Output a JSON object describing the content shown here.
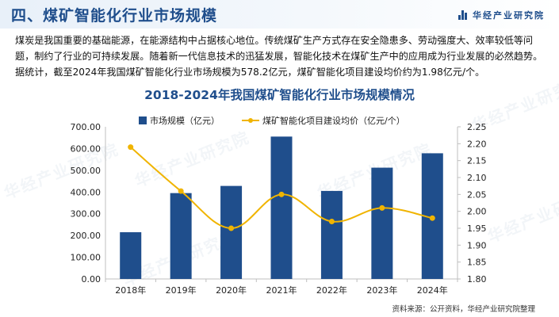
{
  "header": {
    "section_title": "四、煤矿智能化行业市场规模",
    "brand_name": "华经产业研究院"
  },
  "paragraph": "煤炭是我国重要的基础能源，在能源结构中占据核心地位。传统煤矿生产方式存在安全隐患多、劳动强度大、效率较低等问题，制约了行业的可持续发展。随着新一代信息技术的迅猛发展，智能化技术在煤矿生产中的应用成为行业发展的必然趋势。据统计，截至2024年我国煤矿智能化行业市场规模为578.2亿元，煤矿智能化项目建设均价约为1.98亿元/个。",
  "watermark_text": "华经产业研究院",
  "source": "资料来源：公开资料，华经产业研究院整理",
  "chart_data": {
    "type": "bar+line",
    "title": "2018-2024年我国煤矿智能化行业市场规模情况",
    "categories": [
      "2018年",
      "2019年",
      "2020年",
      "2021年",
      "2022年",
      "2023年",
      "2024年"
    ],
    "series": [
      {
        "name": "市场规模（亿元）",
        "type": "bar",
        "axis": "left",
        "color": "#1f4e8c",
        "values": [
          215,
          395,
          428,
          655,
          405,
          512,
          578.2
        ]
      },
      {
        "name": "煤矿智能化项目建设均价（亿元/个）",
        "type": "line",
        "axis": "right",
        "color": "#f0b400",
        "values": [
          2.19,
          2.06,
          1.95,
          2.05,
          1.97,
          2.01,
          1.98
        ]
      }
    ],
    "y_left": {
      "min": 0,
      "max": 700,
      "ticks": [
        "0.00",
        "100.00",
        "200.00",
        "300.00",
        "400.00",
        "500.00",
        "600.00",
        "700.00"
      ]
    },
    "y_right": {
      "min": 1.8,
      "max": 2.25,
      "ticks": [
        "1.80",
        "1.85",
        "1.90",
        "1.95",
        "2.00",
        "2.05",
        "2.10",
        "2.15",
        "2.20",
        "2.25"
      ]
    },
    "grid": false,
    "legend_position": "top"
  }
}
